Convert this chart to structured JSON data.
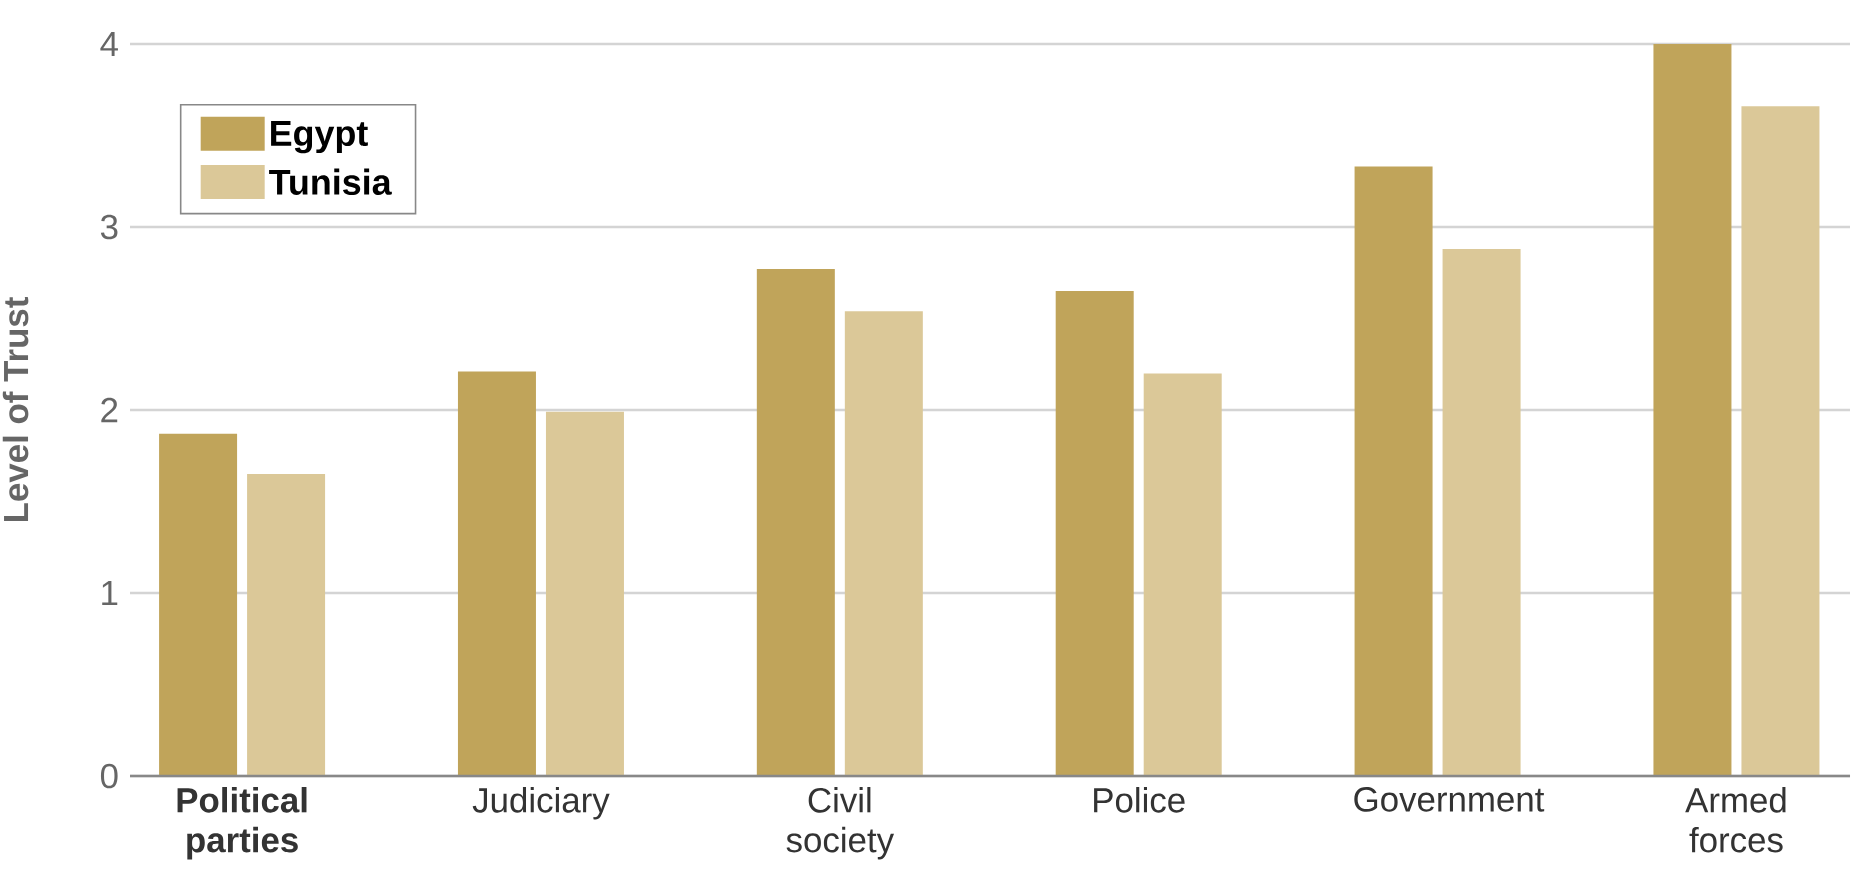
{
  "chart_data": {
    "type": "bar",
    "ylabel": "Level of Trust",
    "categories": [
      "**Political parties**",
      "Judiciary",
      "Civil society",
      "Police",
      "Government",
      "Armed forces"
    ],
    "series": [
      {
        "name": "Egypt",
        "color": "#c0a45a",
        "values": [
          1.87,
          2.21,
          2.77,
          2.65,
          3.33,
          4.0
        ]
      },
      {
        "name": "Tunisia",
        "color": "#dbc898",
        "values": [
          1.65,
          1.99,
          2.54,
          2.2,
          2.88,
          3.66
        ]
      }
    ],
    "ylim": [
      0,
      4
    ],
    "yticks": [
      0,
      1,
      2,
      3,
      4
    ],
    "grid": "y",
    "legend": "top left"
  }
}
